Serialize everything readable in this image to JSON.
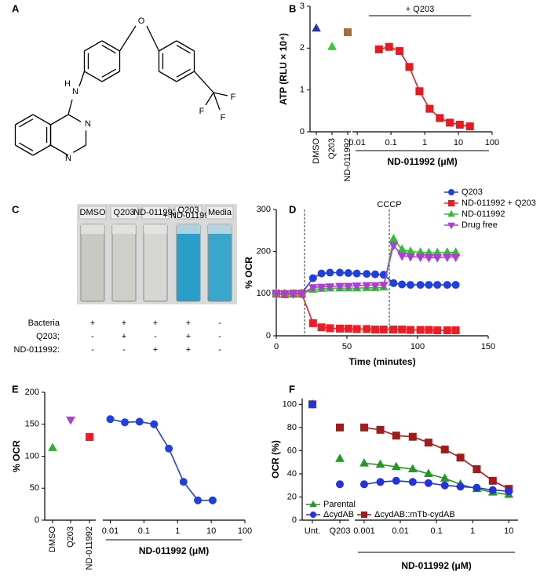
{
  "panel_labels": [
    "A",
    "B",
    "C",
    "D",
    "E",
    "F"
  ],
  "structure_labels": [
    "H",
    "N",
    "N",
    "N",
    "O",
    "F",
    "F",
    "F"
  ],
  "photo": {
    "labels": [
      "DMSO",
      "Q203",
      "ND-011992",
      [
        "Q203",
        "+ ND-011992"
      ],
      "Media"
    ]
  },
  "table": {
    "rows": [
      {
        "label": "Bacteria",
        "cells": [
          "+",
          "+",
          "+",
          "+",
          "-"
        ]
      },
      {
        "label": "Q203;",
        "cells": [
          "-",
          "+",
          "-",
          "+",
          "-"
        ]
      },
      {
        "label": "ND-011992:",
        "cells": [
          "-",
          "-",
          "+",
          "+",
          "-"
        ]
      }
    ]
  },
  "chart_data": [
    {
      "type": "scatter",
      "y_label": "ATP (RLU × 10⁴)",
      "x_label": "ND-011992 (μM)",
      "annotation": "+ Q203",
      "categories": [
        "DMSO",
        "Q203",
        "ND-011992"
      ],
      "category_values": [
        2.47,
        2.03,
        2.38
      ],
      "category_colors": [
        "#2a2fbf",
        "#33cc33",
        "#a0723a"
      ],
      "category_markers": [
        "triangle",
        "triangle",
        "square"
      ],
      "series": [
        {
          "color": "#e8191f",
          "marker": "square",
          "x": [
            0.044,
            0.088,
            0.18,
            0.35,
            0.7,
            1.4,
            2.8,
            5.6,
            11,
            22
          ],
          "values": [
            1.97,
            2.03,
            1.93,
            1.55,
            0.97,
            0.55,
            0.33,
            0.22,
            0.17,
            0.13
          ]
        }
      ],
      "xscale": "log",
      "xlim": [
        0.0072,
        100
      ],
      "xticks": [
        0.01,
        0.1,
        1,
        10,
        100
      ],
      "ylim": [
        0,
        3
      ],
      "yticks": [
        0,
        1,
        2,
        3
      ]
    },
    {
      "type": "line",
      "y_label": "% OCR",
      "x_label": "Time (minutes)",
      "annotation": "CCCP",
      "vlines": [
        20,
        80
      ],
      "x": [
        0,
        6,
        12,
        18,
        26,
        32,
        38,
        45,
        51,
        57,
        64,
        70,
        76,
        83,
        89,
        95,
        102,
        108,
        114,
        121,
        127
      ],
      "series": [
        {
          "name": "Q203",
          "color": "#1f3fe0",
          "marker": "circle",
          "values": [
            100,
            100,
            100,
            101,
            137,
            148,
            150,
            150,
            149,
            148,
            147,
            146,
            145,
            125,
            122,
            121,
            121,
            121,
            121,
            121,
            121
          ]
        },
        {
          "name": "ND-011992 + Q203",
          "color": "#ee1c24",
          "marker": "square",
          "values": [
            100,
            99,
            100,
            100,
            30,
            20,
            18,
            17,
            17,
            16,
            16,
            15,
            15,
            15,
            15,
            14,
            14,
            14,
            13,
            13,
            13
          ]
        },
        {
          "name": "ND-011992",
          "color": "#2ec02e",
          "marker": "triangle",
          "values": [
            100,
            100,
            100,
            100,
            110,
            112,
            113,
            113,
            113,
            113,
            114,
            114,
            115,
            230,
            205,
            200,
            198,
            197,
            197,
            198,
            198
          ]
        },
        {
          "name": "Drug free",
          "color": "#b03cd8",
          "marker": "down-triangle",
          "values": [
            100,
            100,
            100,
            100,
            115,
            116,
            117,
            118,
            118,
            119,
            120,
            120,
            121,
            215,
            190,
            188,
            187,
            186,
            186,
            187,
            187
          ]
        }
      ],
      "legend": "upper right",
      "xlim": [
        0,
        150
      ],
      "xticks": [
        0,
        50,
        100,
        150
      ],
      "ylim": [
        0,
        300
      ],
      "yticks": [
        0,
        100,
        200,
        300
      ]
    },
    {
      "type": "scatter",
      "y_label": "% OCR",
      "x_label": "ND-011992 (μM)",
      "categories": [
        "DMSO",
        "Q203",
        "ND-011992"
      ],
      "category_values": [
        113,
        157,
        130
      ],
      "category_colors": [
        "#2db32d",
        "#b03cd8",
        "#ee1c24"
      ],
      "category_markers": [
        "triangle",
        "down-triangle",
        "square"
      ],
      "series": [
        {
          "color": "#1f3fe0",
          "marker": "circle",
          "x": [
            0.01,
            0.027,
            0.074,
            0.2,
            0.55,
            1.5,
            4,
            11
          ],
          "values": [
            158,
            153,
            154,
            150,
            112,
            60,
            31,
            31
          ]
        }
      ],
      "xscale": "log",
      "xlim": [
        0.006,
        100
      ],
      "xticks": [
        0.01,
        0.1,
        1,
        10,
        100
      ],
      "ylim": [
        0,
        200
      ],
      "yticks": [
        0,
        50,
        100,
        150,
        200
      ]
    },
    {
      "type": "scatter",
      "y_label": "OCR (%)",
      "x_label": "ND-011992 (μM)",
      "categories": [
        "Unt.",
        "Q203"
      ],
      "legend": "lower left",
      "series": [
        {
          "name": "ΔcydAB::mTb-cydAB",
          "color": "#a11d1d",
          "marker": "square",
          "category_values": [
            100,
            80
          ],
          "x": [
            0.001,
            0.0028,
            0.0077,
            0.022,
            0.06,
            0.17,
            0.46,
            1.3,
            3.6,
            10
          ],
          "values": [
            80,
            78,
            73,
            72,
            67,
            61,
            54,
            44,
            34,
            27
          ]
        },
        {
          "name": "Parental",
          "color": "#229922",
          "marker": "triangle",
          "category_values": [
            100,
            53
          ],
          "x": [
            0.001,
            0.0028,
            0.0077,
            0.022,
            0.06,
            0.17,
            0.46,
            1.3,
            3.6,
            10
          ],
          "values": [
            49,
            48,
            46,
            44,
            40,
            36,
            31,
            27,
            24,
            22
          ]
        },
        {
          "name": "ΔcydAB",
          "color": "#2233dd",
          "marker": "circle",
          "category_values": [
            100,
            31
          ],
          "x": [
            0.001,
            0.0028,
            0.0077,
            0.022,
            0.06,
            0.17,
            0.46,
            1.3,
            3.6,
            10
          ],
          "values": [
            31,
            33,
            34,
            33,
            32,
            30,
            29,
            28,
            26,
            25
          ]
        }
      ],
      "xscale": "log",
      "xlim": [
        0.00055,
        18
      ],
      "xticks": [
        0.001,
        0.01,
        0.1,
        1,
        10
      ],
      "ylim": [
        0,
        105
      ],
      "yticks": [
        0,
        20,
        40,
        60,
        80,
        100
      ]
    }
  ]
}
